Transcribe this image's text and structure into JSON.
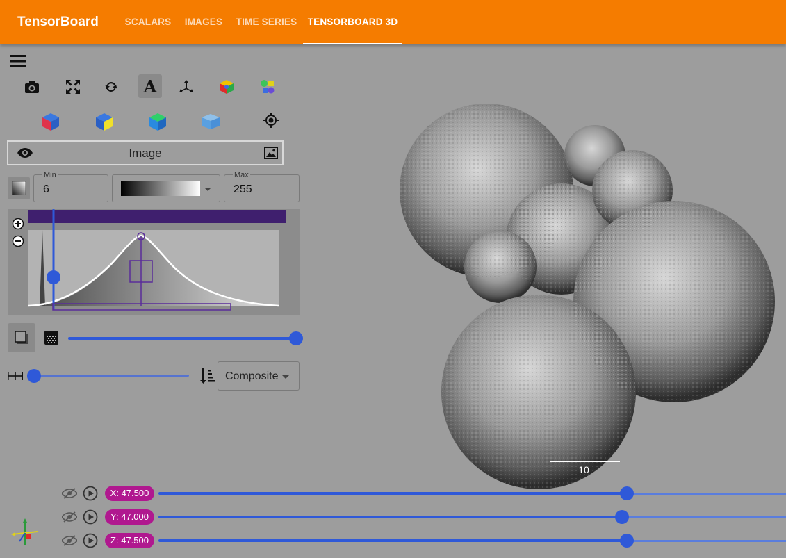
{
  "app": {
    "title": "TensorBoard"
  },
  "nav": {
    "tabs": [
      {
        "label": "SCALARS"
      },
      {
        "label": "IMAGES"
      },
      {
        "label": "TIME SERIES"
      },
      {
        "label": "TENSORBOARD 3D",
        "active": true
      }
    ]
  },
  "toolbar": {
    "row1": [
      "camera-icon",
      "fullscreen-icon",
      "rotate-icon",
      "text-annotation-icon",
      "axes-icon",
      "color-cube-icon",
      "layers-icon"
    ],
    "row2": [
      "cube-red-blue-icon",
      "cube-yellow-blue-icon",
      "cube-green-blue-icon",
      "cube-blue-icon",
      "target-icon"
    ]
  },
  "layer": {
    "name": "Image"
  },
  "window": {
    "min_label": "Min",
    "min_value": "6",
    "max_label": "Max",
    "max_value": "255",
    "colormap": "grayscale"
  },
  "histogram": {
    "bar_color": "#3f1f6e",
    "threshold_fraction": 0.1,
    "opacity_fraction": 0.5
  },
  "opacity_slider": {
    "value": 1.0
  },
  "spacing_slider": {
    "value": 0.0
  },
  "blend": {
    "selected": "Composite"
  },
  "scale_bar": {
    "label": "10"
  },
  "slices": [
    {
      "axis": "X",
      "label": "X: 47.500",
      "fraction": 0.7
    },
    {
      "axis": "Y",
      "label": "Y: 47.000",
      "fraction": 0.69
    },
    {
      "axis": "Z",
      "label": "Z: 47.500",
      "fraction": 0.7
    }
  ],
  "colors": {
    "accent": "#f57c00",
    "slider": "#2f59d8",
    "badge": "#b0188f"
  }
}
